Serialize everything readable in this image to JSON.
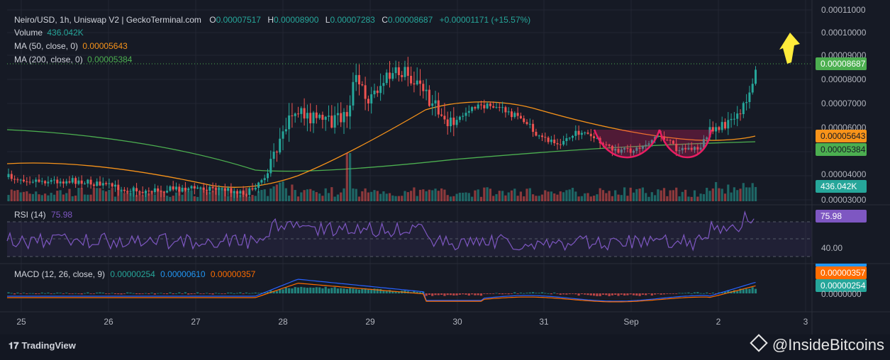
{
  "header": {
    "symbol": "Neiro/USD, 1h, Uniswap V2 | GeckoTerminal.com",
    "o_label": "O",
    "o_value": "0.00007517",
    "h_label": "H",
    "h_value": "0.00008900",
    "l_label": "L",
    "l_value": "0.00007283",
    "c_label": "C",
    "c_value": "0.00008687",
    "change": "+0.00001171 (+15.57%)",
    "volume_label": "Volume",
    "volume_value": "436.042K",
    "ma50_label": "MA (50, close, 0)",
    "ma50_value": "0.00005643",
    "ma200_label": "MA (200, close, 0)",
    "ma200_value": "0.00005384",
    "rsi_label": "RSI (14)",
    "rsi_value": "75.98",
    "macd_label": "MACD (12, 26, close, 9)",
    "macd_hist": "0.00000254",
    "macd_line": "0.00000610",
    "macd_signal": "0.00000357"
  },
  "branding": {
    "left": "TradingView",
    "right": "@InsideBitcoins"
  },
  "colors": {
    "up": "#26a69a",
    "down": "#ef5350",
    "ma50": "#f7931a",
    "ma200": "#4caf50",
    "rsi": "#7e57c2",
    "macd": "#2962ff",
    "signal": "#ff6d00",
    "cup": "#e91e63",
    "arrow": "#ffeb3b"
  },
  "chart_data": {
    "type": "candlestick",
    "x_ticks": [
      "25",
      "26",
      "27",
      "28",
      "29",
      "30",
      "31",
      "Sep",
      "2",
      "3"
    ],
    "price_axis": {
      "ticks": [
        "0.00011000",
        "0.00010000",
        "0.00009000",
        "0.00008000",
        "0.00007000",
        "0.00006000",
        "0.00004000",
        "0.00003000"
      ],
      "last_close_label": "0.00008687",
      "ma50_label": "0.00005643",
      "ma200_label": "0.00005384",
      "volume_label": "436.042K"
    },
    "rsi_axis": {
      "ticks": [
        "40.00"
      ],
      "value_label": "75.98"
    },
    "macd_axis": {
      "ticks": [
        "0.0000000"
      ],
      "labels": [
        "0.00000357",
        "0.00000254"
      ]
    },
    "pattern": "double cup",
    "annotation": "up arrow"
  }
}
